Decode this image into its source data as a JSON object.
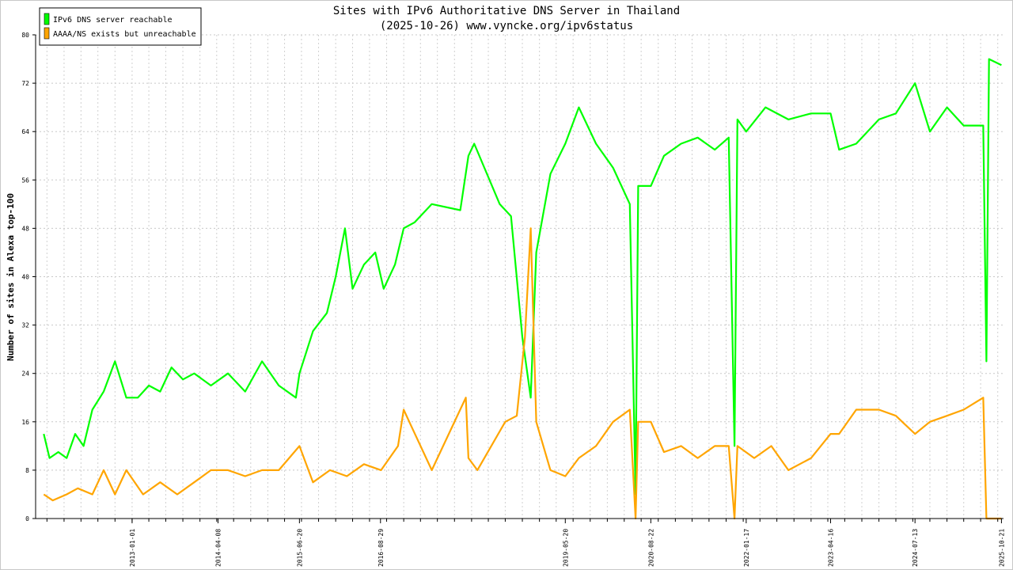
{
  "chart_data": {
    "type": "line",
    "title": "Sites with IPv6 Authoritative DNS Server in Thailand",
    "subtitle": "(2025-10-26) www.vyncke.org/ipv6status",
    "ylabel": "Number of sites in Alexa top-100",
    "xlabel": "",
    "ylim": [
      0,
      80
    ],
    "y_ticks": [
      "0",
      "8",
      "16",
      "24",
      "32",
      "40",
      "48",
      "56",
      "64",
      "72",
      "80"
    ],
    "x_ticks": [
      "2013-01-01",
      "2014-04-08",
      "2015-06-20",
      "2016-08-29",
      "2019-05-20",
      "2020-08-22",
      "2022-01-17",
      "2023-04-16",
      "2024-07-13",
      "2025-10-21"
    ],
    "grid": true,
    "legend_position": "top-left",
    "series": [
      {
        "name": "IPv6 DNS server reachable",
        "color": "#00ff00",
        "points": [
          [
            "2011-09-14",
            14
          ],
          [
            "2011-10-15",
            10
          ],
          [
            "2011-12-01",
            11
          ],
          [
            "2012-01-15",
            10
          ],
          [
            "2012-03-01",
            14
          ],
          [
            "2012-04-15",
            12
          ],
          [
            "2012-06-01",
            18
          ],
          [
            "2012-08-01",
            21
          ],
          [
            "2012-10-01",
            26
          ],
          [
            "2012-12-01",
            20
          ],
          [
            "2013-02-01",
            20
          ],
          [
            "2013-04-01",
            22
          ],
          [
            "2013-06-01",
            21
          ],
          [
            "2013-08-01",
            25
          ],
          [
            "2013-10-01",
            23
          ],
          [
            "2013-12-01",
            24
          ],
          [
            "2014-03-01",
            22
          ],
          [
            "2014-06-01",
            24
          ],
          [
            "2014-09-01",
            21
          ],
          [
            "2014-12-01",
            26
          ],
          [
            "2015-03-01",
            22
          ],
          [
            "2015-06-01",
            20
          ],
          [
            "2015-06-20",
            24
          ],
          [
            "2015-09-01",
            31
          ],
          [
            "2015-11-15",
            34
          ],
          [
            "2016-01-01",
            40
          ],
          [
            "2016-02-20",
            48
          ],
          [
            "2016-04-01",
            38
          ],
          [
            "2016-06-01",
            42
          ],
          [
            "2016-08-01",
            44
          ],
          [
            "2016-09-15",
            38
          ],
          [
            "2016-11-15",
            42
          ],
          [
            "2017-01-01",
            48
          ],
          [
            "2017-03-01",
            49
          ],
          [
            "2017-06-01",
            52
          ],
          [
            "2017-11-01",
            51
          ],
          [
            "2017-12-15",
            60
          ],
          [
            "2018-01-15",
            62
          ],
          [
            "2018-06-01",
            52
          ],
          [
            "2018-08-01",
            50
          ],
          [
            "2018-10-01",
            30
          ],
          [
            "2018-11-15",
            20
          ],
          [
            "2018-12-15",
            44
          ],
          [
            "2019-03-01",
            57
          ],
          [
            "2019-05-20",
            62
          ],
          [
            "2019-08-01",
            68
          ],
          [
            "2019-11-01",
            62
          ],
          [
            "2020-02-01",
            58
          ],
          [
            "2020-05-01",
            52
          ],
          [
            "2020-06-01",
            4
          ],
          [
            "2020-06-15",
            55
          ],
          [
            "2020-08-22",
            55
          ],
          [
            "2020-11-01",
            60
          ],
          [
            "2021-02-01",
            62
          ],
          [
            "2021-05-01",
            63
          ],
          [
            "2021-08-01",
            61
          ],
          [
            "2021-10-15",
            63
          ],
          [
            "2021-11-15",
            12
          ],
          [
            "2021-12-01",
            66
          ],
          [
            "2022-01-17",
            64
          ],
          [
            "2022-05-01",
            68
          ],
          [
            "2022-09-01",
            66
          ],
          [
            "2023-01-01",
            67
          ],
          [
            "2023-04-16",
            67
          ],
          [
            "2023-06-01",
            61
          ],
          [
            "2023-09-01",
            62
          ],
          [
            "2024-01-01",
            66
          ],
          [
            "2024-04-01",
            67
          ],
          [
            "2024-07-13",
            72
          ],
          [
            "2024-10-01",
            64
          ],
          [
            "2025-01-01",
            68
          ],
          [
            "2025-04-01",
            65
          ],
          [
            "2025-07-15",
            65
          ],
          [
            "2025-08-01",
            26
          ],
          [
            "2025-08-15",
            76
          ],
          [
            "2025-10-21",
            75
          ]
        ]
      },
      {
        "name": "AAAA/NS exists but unreachable",
        "color": "#ffa500",
        "points": [
          [
            "2011-09-14",
            4
          ],
          [
            "2011-11-01",
            3
          ],
          [
            "2012-01-15",
            4
          ],
          [
            "2012-03-15",
            5
          ],
          [
            "2012-06-01",
            4
          ],
          [
            "2012-08-01",
            8
          ],
          [
            "2012-10-01",
            4
          ],
          [
            "2012-12-01",
            8
          ],
          [
            "2013-03-01",
            4
          ],
          [
            "2013-06-01",
            6
          ],
          [
            "2013-09-01",
            4
          ],
          [
            "2013-12-01",
            6
          ],
          [
            "2014-03-01",
            8
          ],
          [
            "2014-06-01",
            8
          ],
          [
            "2014-09-01",
            7
          ],
          [
            "2014-12-01",
            8
          ],
          [
            "2015-03-01",
            8
          ],
          [
            "2015-06-20",
            12
          ],
          [
            "2015-09-01",
            6
          ],
          [
            "2015-12-01",
            8
          ],
          [
            "2016-03-01",
            7
          ],
          [
            "2016-06-01",
            9
          ],
          [
            "2016-09-01",
            8
          ],
          [
            "2016-12-01",
            12
          ],
          [
            "2017-01-01",
            18
          ],
          [
            "2017-02-15",
            15
          ],
          [
            "2017-06-01",
            8
          ],
          [
            "2017-12-01",
            20
          ],
          [
            "2017-12-15",
            10
          ],
          [
            "2018-02-01",
            8
          ],
          [
            "2018-07-01",
            16
          ],
          [
            "2018-09-01",
            17
          ],
          [
            "2018-10-15",
            30
          ],
          [
            "2018-11-15",
            48
          ],
          [
            "2018-12-15",
            16
          ],
          [
            "2019-03-01",
            8
          ],
          [
            "2019-05-20",
            7
          ],
          [
            "2019-08-01",
            10
          ],
          [
            "2019-11-01",
            12
          ],
          [
            "2020-02-01",
            16
          ],
          [
            "2020-05-01",
            18
          ],
          [
            "2020-06-01",
            0
          ],
          [
            "2020-06-15",
            16
          ],
          [
            "2020-08-22",
            16
          ],
          [
            "2020-11-01",
            11
          ],
          [
            "2021-02-01",
            12
          ],
          [
            "2021-05-01",
            10
          ],
          [
            "2021-08-01",
            12
          ],
          [
            "2021-10-15",
            12
          ],
          [
            "2021-11-15",
            0
          ],
          [
            "2021-12-01",
            12
          ],
          [
            "2022-03-01",
            10
          ],
          [
            "2022-06-01",
            12
          ],
          [
            "2022-09-01",
            8
          ],
          [
            "2023-01-01",
            10
          ],
          [
            "2023-04-16",
            14
          ],
          [
            "2023-06-01",
            14
          ],
          [
            "2023-09-01",
            18
          ],
          [
            "2024-01-01",
            18
          ],
          [
            "2024-04-01",
            17
          ],
          [
            "2024-07-13",
            14
          ],
          [
            "2024-10-01",
            16
          ],
          [
            "2025-01-01",
            17
          ],
          [
            "2025-04-01",
            18
          ],
          [
            "2025-07-15",
            20
          ],
          [
            "2025-08-01",
            0
          ],
          [
            "2025-10-21",
            0
          ]
        ]
      }
    ]
  }
}
